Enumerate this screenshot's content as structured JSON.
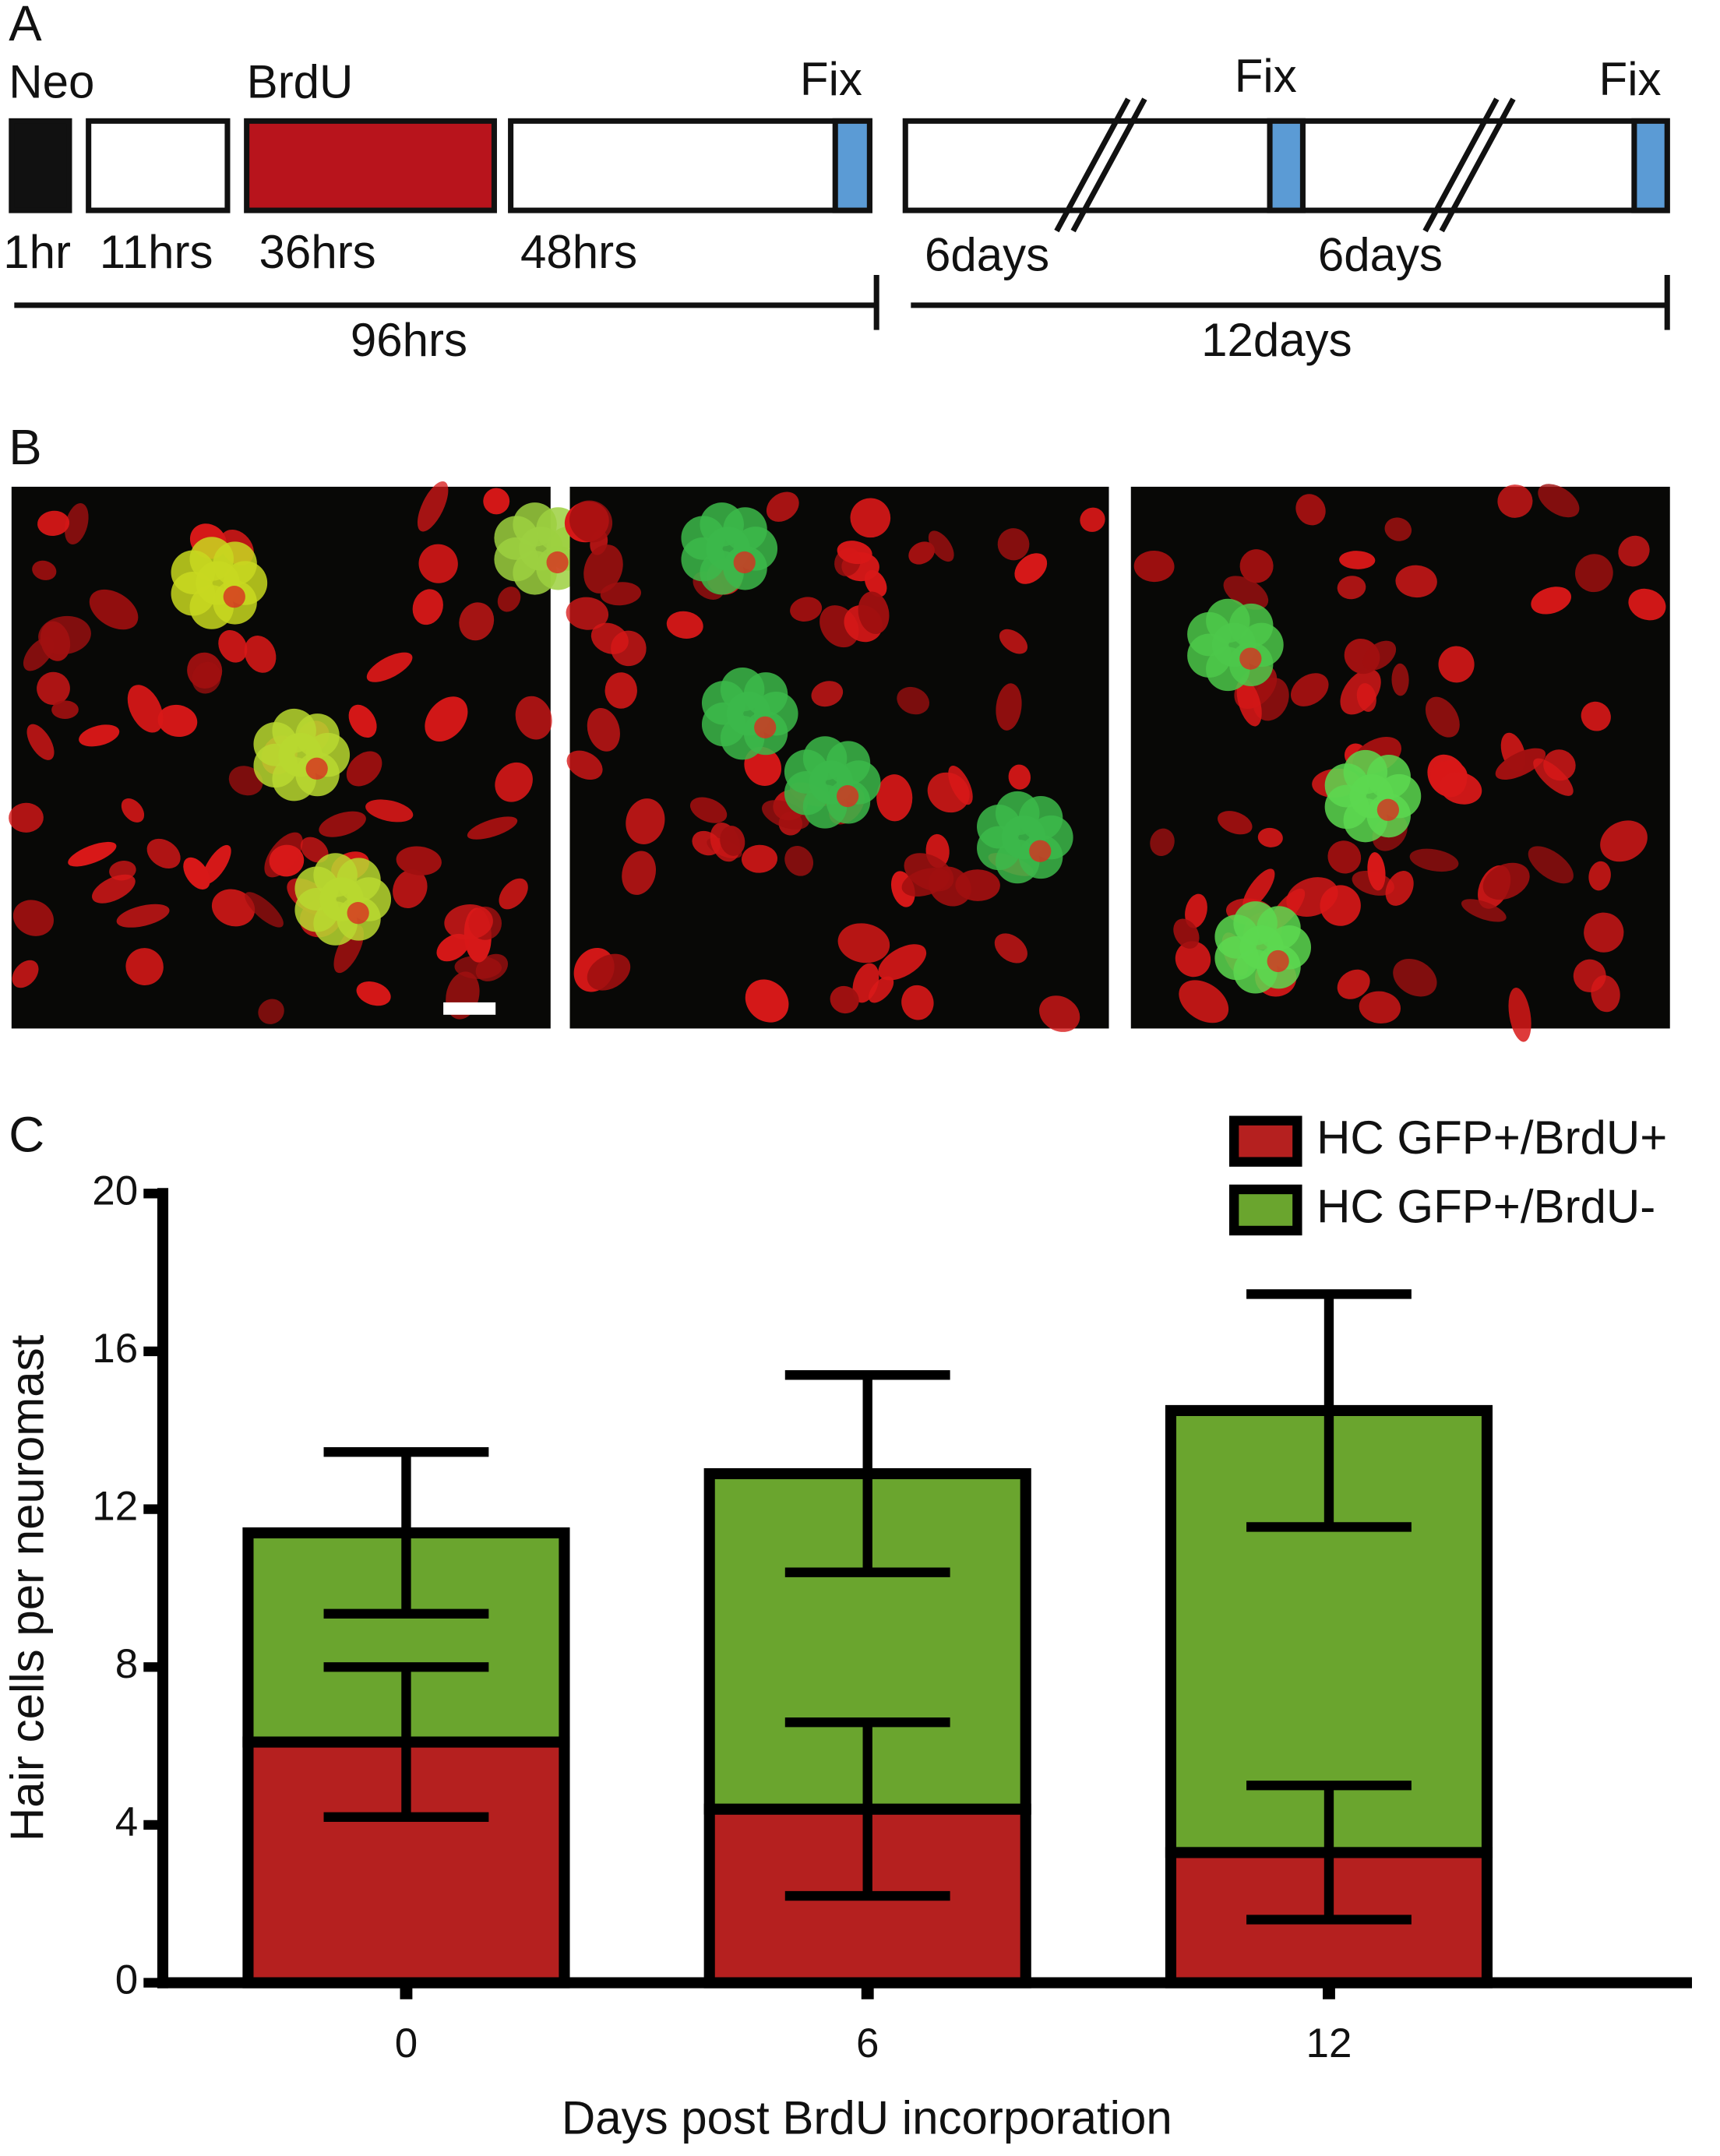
{
  "panel_a": {
    "label": "A",
    "stages": [
      "Neo",
      "BrdU"
    ],
    "fix_labels": [
      "Fix",
      "Fix",
      "Fix"
    ],
    "durations": [
      "1hr",
      "11hrs",
      "36hrs",
      "48hrs",
      "6days",
      "6days"
    ],
    "spans": [
      "96hrs",
      "12days"
    ]
  },
  "panel_b": {
    "label": "B"
  },
  "panel_c": {
    "label": "C"
  },
  "chart_data": {
    "type": "stacked_bar",
    "xlabel": "Days post BrdU incorporation",
    "ylabel": "Hair cells per neuromast",
    "categories": [
      "0",
      "6",
      "12"
    ],
    "series": [
      {
        "name": "HC GFP+/BrdU+",
        "color": "#b5201f",
        "values": [
          6.1,
          4.4,
          3.3
        ],
        "errors": [
          1.9,
          2.2,
          1.7
        ]
      },
      {
        "name": "HC GFP+/BrdU-",
        "color": "#6aa52e",
        "values": [
          5.3,
          8.5,
          11.2
        ],
        "errors": [
          2.05,
          2.5,
          2.95
        ]
      }
    ],
    "ylim": [
      0,
      20
    ],
    "yticks": [
      0,
      4,
      8,
      12,
      16,
      20
    ],
    "legend": "top-right"
  }
}
